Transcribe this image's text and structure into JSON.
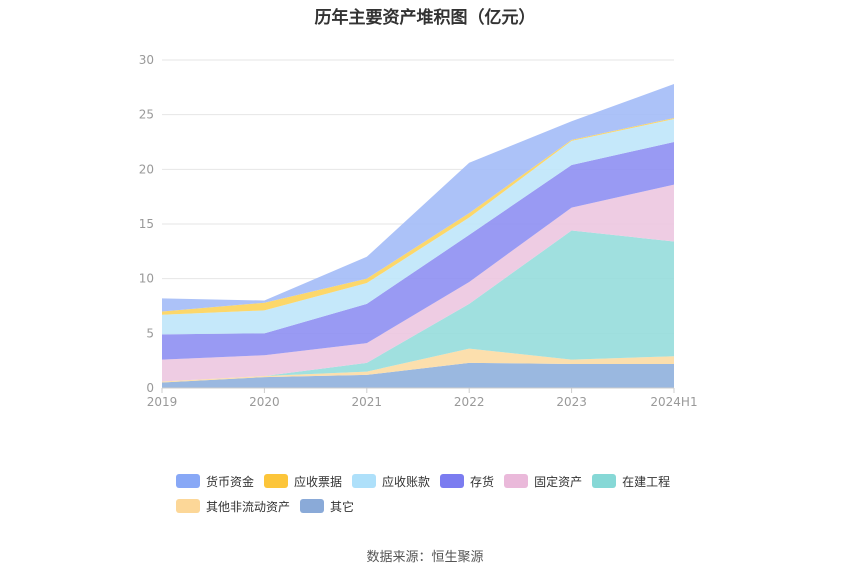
{
  "title": "历年主要资产堆积图（亿元）",
  "source": "数据来源：恒生聚源",
  "chart_data": {
    "type": "area",
    "stacked": true,
    "categories": [
      "2019",
      "2020",
      "2021",
      "2022",
      "2023",
      "2024H1"
    ],
    "ylim": [
      0,
      30
    ],
    "yticks": [
      0,
      5,
      10,
      15,
      20,
      25,
      30
    ],
    "grid": true,
    "legend_position": "bottom",
    "series": [
      {
        "name": "其它",
        "color": "#8fb0dd",
        "values": [
          0.5,
          1.0,
          1.2,
          2.3,
          2.2,
          2.2
        ]
      },
      {
        "name": "其他非流动资产",
        "color": "#fcdca4",
        "values": [
          0.1,
          0.1,
          0.3,
          1.3,
          0.4,
          0.7
        ]
      },
      {
        "name": "在建工程",
        "color": "#96dddb",
        "values": [
          0.0,
          0.0,
          0.8,
          4.1,
          11.8,
          10.5
        ]
      },
      {
        "name": "固定资产",
        "color": "#ecc6e0",
        "values": [
          2.0,
          1.9,
          1.8,
          2.0,
          2.1,
          5.2
        ]
      },
      {
        "name": "存货",
        "color": "#8e8ff2",
        "values": [
          2.3,
          2.0,
          3.6,
          4.3,
          3.9,
          3.9
        ]
      },
      {
        "name": "应收账款",
        "color": "#bfe6fa",
        "values": [
          1.8,
          2.1,
          1.9,
          1.6,
          2.2,
          2.1
        ]
      },
      {
        "name": "应收票据",
        "color": "#fcd35a",
        "values": [
          0.3,
          0.7,
          0.4,
          0.4,
          0.1,
          0.1
        ]
      },
      {
        "name": "货币资金",
        "color": "#a3bbf7",
        "values": [
          1.2,
          0.2,
          2.0,
          4.6,
          1.7,
          3.1
        ]
      }
    ]
  },
  "legend_order": [
    {
      "name": "货币资金",
      "color": "#88a8f6"
    },
    {
      "name": "应收票据",
      "color": "#fcc53a"
    },
    {
      "name": "应收账款",
      "color": "#aee0fa"
    },
    {
      "name": "存货",
      "color": "#7b7cf0"
    },
    {
      "name": "固定资产",
      "color": "#eab9da"
    },
    {
      "name": "在建工程",
      "color": "#86d8d6"
    },
    {
      "name": "其他非流动资产",
      "color": "#fcd798"
    },
    {
      "name": "其它",
      "color": "#8aaad8"
    }
  ]
}
